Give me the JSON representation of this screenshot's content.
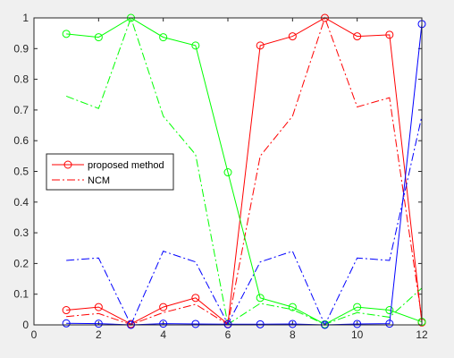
{
  "figure": {
    "background": "#f0f0f0",
    "axes_background": "#ffffff"
  },
  "chart_data": {
    "type": "line",
    "title": "",
    "xlabel": "",
    "ylabel": "",
    "xlim": [
      0,
      12
    ],
    "ylim": [
      0,
      1
    ],
    "xticks": [
      0,
      2,
      4,
      6,
      8,
      10,
      12
    ],
    "yticks": [
      0,
      0.1,
      0.2,
      0.3,
      0.4,
      0.5,
      0.6,
      0.7,
      0.8,
      0.9,
      1
    ],
    "ytick_labels": [
      "0",
      "0.1",
      "0.2",
      "0.3",
      "0.4",
      "0.5",
      "0.6",
      "0.7",
      "0.8",
      "0.9",
      "1"
    ],
    "grid": false,
    "legend_position": "left-middle",
    "x": [
      1,
      2,
      3,
      4,
      5,
      6,
      7,
      8,
      9,
      10,
      11,
      12
    ],
    "series": [
      {
        "name": "proposed method",
        "group": "red",
        "style": "solid-circle",
        "color": "#ff0000",
        "values": [
          0.048,
          0.058,
          0.003,
          0.058,
          0.088,
          0.003,
          0.91,
          0.94,
          1.0,
          0.94,
          0.945,
          0.008
        ]
      },
      {
        "name": "NCM",
        "group": "red",
        "style": "dashdot",
        "color": "#ff0000",
        "values": [
          0.027,
          0.037,
          0.001,
          0.04,
          0.067,
          0.001,
          0.55,
          0.68,
          1.0,
          0.71,
          0.74,
          0.02
        ]
      },
      {
        "group": "green",
        "style": "solid-circle",
        "color": "#00ff00",
        "values": [
          0.948,
          0.937,
          1.0,
          0.937,
          0.91,
          0.497,
          0.088,
          0.058,
          0.002,
          0.058,
          0.048,
          0.01
        ]
      },
      {
        "group": "green",
        "style": "dashdot",
        "color": "#00ff00",
        "values": [
          0.745,
          0.705,
          1.0,
          0.68,
          0.555,
          0.002,
          0.07,
          0.05,
          0.002,
          0.04,
          0.025,
          0.12
        ]
      },
      {
        "group": "blue",
        "style": "solid-circle",
        "color": "#0000ff",
        "values": [
          0.005,
          0.004,
          0.0,
          0.004,
          0.003,
          0.002,
          0.002,
          0.003,
          0.0,
          0.003,
          0.004,
          0.98
        ]
      },
      {
        "group": "blue",
        "style": "dashdot",
        "color": "#0000ff",
        "values": [
          0.21,
          0.218,
          0.0,
          0.24,
          0.205,
          0.003,
          0.205,
          0.24,
          0.0,
          0.218,
          0.21,
          0.68
        ]
      }
    ],
    "legend": [
      {
        "label": "proposed method",
        "style": "solid-circle",
        "color": "#ff0000"
      },
      {
        "label": "NCM",
        "style": "dashdot",
        "color": "#ff0000"
      }
    ]
  }
}
